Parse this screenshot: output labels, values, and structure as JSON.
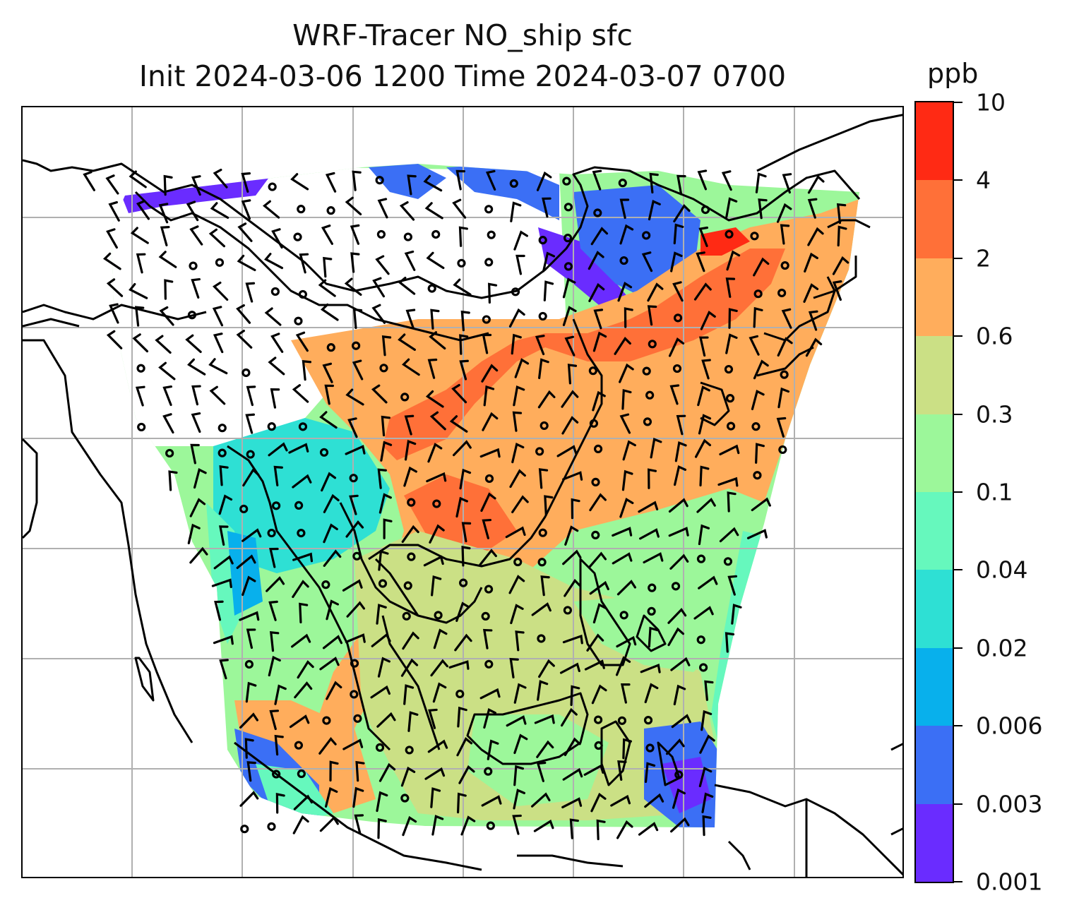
{
  "title": {
    "line1": "WRF-Tracer NO_ship sfc",
    "line2": "Init 2024-03-06 1200 Time 2024-03-07 0700"
  },
  "colorbar": {
    "unit": "ppb",
    "levels": [
      "0.001",
      "0.003",
      "0.006",
      "0.02",
      "0.04",
      "0.1",
      "0.3",
      "0.6",
      "2",
      "4",
      "10"
    ],
    "colors": [
      "#6a2cff",
      "#3b6ff5",
      "#08b0ec",
      "#2ee0d4",
      "#66f8bd",
      "#9cf79a",
      "#cbe085",
      "#ffad5c",
      "#ff7038",
      "#ff2a14"
    ]
  },
  "map": {
    "features": [
      "coastlines",
      "gridlines",
      "wind-barbs",
      "concentration-field"
    ],
    "gridline_color": "#b0b0b0",
    "coast_color": "#000000"
  }
}
